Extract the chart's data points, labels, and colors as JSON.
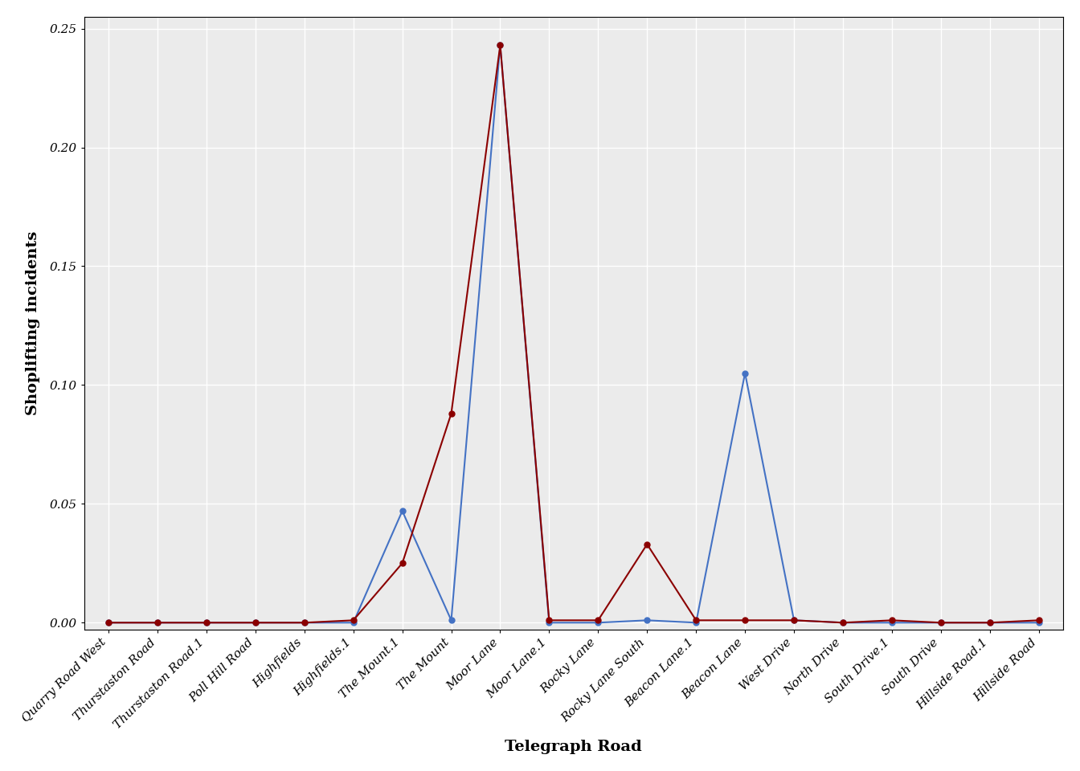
{
  "categories": [
    "Quarry Road West",
    "Thurstaston Road",
    "Thurstaston Road.1",
    "Poll Hill Road",
    "Highfields",
    "Highfields.1",
    "The Mount.1",
    "The Mount",
    "Moor Lane",
    "Moor Lane.1",
    "Rocky Lane",
    "Rocky Lane South",
    "Beacon Lane.1",
    "Beacon Lane",
    "West Drive",
    "North Drive",
    "South Drive.1",
    "South Drive",
    "Hillside Road.1",
    "Hillside Road"
  ],
  "blue_values": [
    0.0,
    0.0,
    0.0,
    0.0,
    0.0,
    0.0,
    0.047,
    0.001,
    0.243,
    0.0,
    0.0,
    0.001,
    0.0,
    0.105,
    0.001,
    0.0,
    0.0,
    0.0,
    0.0,
    0.0
  ],
  "red_values": [
    0.0,
    0.0,
    0.0,
    0.0,
    0.0,
    0.001,
    0.025,
    0.088,
    0.243,
    0.001,
    0.001,
    0.033,
    0.001,
    0.001,
    0.001,
    0.0,
    0.001,
    0.0,
    0.0,
    0.001
  ],
  "blue_color": "#4472C4",
  "red_color": "#8B0000",
  "xlabel": "Telegraph Road",
  "ylabel": "Shoplifting incidents",
  "ylim": [
    -0.003,
    0.255
  ],
  "yticks": [
    0.0,
    0.05,
    0.1,
    0.15,
    0.2,
    0.25
  ],
  "plot_bg_color": "#EBEBEB",
  "fig_bg_color": "#FFFFFF",
  "grid_color": "#FFFFFF",
  "marker_size": 5,
  "linewidth": 1.5,
  "xlabel_fontsize": 14,
  "ylabel_fontsize": 14,
  "tick_fontsize": 11
}
